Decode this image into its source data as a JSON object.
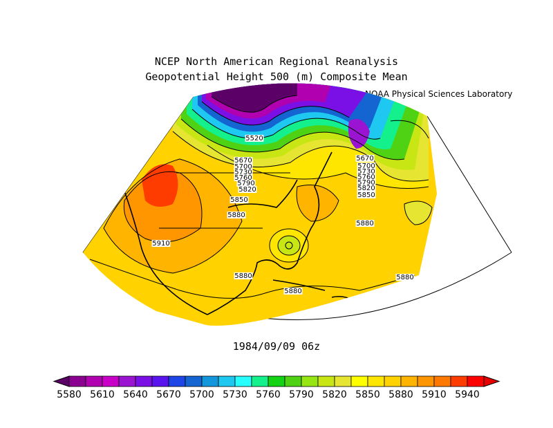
{
  "title": "NCEP North American Regional Reanalysis",
  "subtitle": "Geopotential Height 500 (m) Composite Mean",
  "credit": "NOAA Physical Sciences Laboratory",
  "date": "1984/09/09 06z",
  "colorbar": {
    "labels": [
      "5580",
      "5610",
      "5640",
      "5670",
      "5700",
      "5730",
      "5760",
      "5790",
      "5820",
      "5850",
      "5880",
      "5910",
      "5940"
    ],
    "colors": [
      "#5a0066",
      "#8a0090",
      "#b000b0",
      "#c800c8",
      "#9a14d2",
      "#7a10e6",
      "#5a14f0",
      "#1e46e6",
      "#1464d2",
      "#1496dc",
      "#1ec8f0",
      "#28ffff",
      "#14f08c",
      "#14d214",
      "#50d214",
      "#96e614",
      "#c8e614",
      "#e6e632",
      "#ffff00",
      "#ffe600",
      "#ffd200",
      "#ffb400",
      "#ff9600",
      "#ff7800",
      "#ff3c00",
      "#ff0000",
      "#e60000"
    ]
  },
  "contour_labels": [
    {
      "text": "5520"
    },
    {
      "text": "5670"
    },
    {
      "text": "5700"
    },
    {
      "text": "5730"
    },
    {
      "text": "5760"
    },
    {
      "text": "5790"
    },
    {
      "text": "5820"
    },
    {
      "text": "5850"
    },
    {
      "text": "5880"
    },
    {
      "text": "5670"
    },
    {
      "text": "5700"
    },
    {
      "text": "5730"
    },
    {
      "text": "5760"
    },
    {
      "text": "5790"
    },
    {
      "text": "5820"
    },
    {
      "text": "5850"
    },
    {
      "text": "5880"
    },
    {
      "text": "5910"
    },
    {
      "text": "5880"
    },
    {
      "text": "5880"
    },
    {
      "text": "5880"
    }
  ]
}
